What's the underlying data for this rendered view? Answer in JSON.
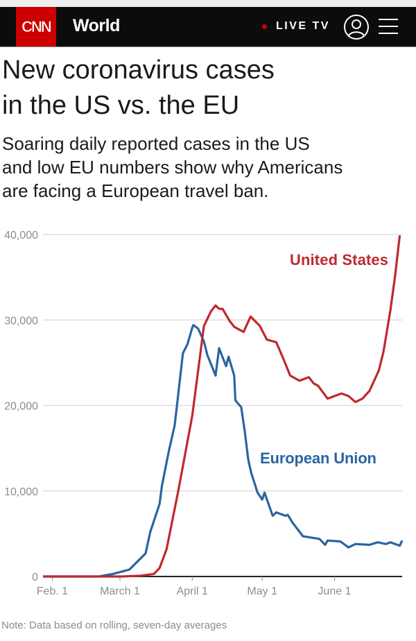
{
  "nav": {
    "logo": "CNN",
    "section": "World",
    "live_label": "LIVE TV",
    "icons": [
      "live-dot-icon",
      "user-icon",
      "menu-icon"
    ]
  },
  "article": {
    "title_lines": [
      "New coronavirus cases",
      "in the US vs. the EU"
    ],
    "dek_lines": [
      "Soaring daily reported cases in the US",
      "and low EU numbers show why Americans",
      "are facing a European travel ban."
    ],
    "note": "Note: Data based on rolling, seven-day averages"
  },
  "colors": {
    "us": "#c0282d",
    "eu": "#2a64a0",
    "brand": "#cc0000"
  },
  "chart_data": {
    "type": "line",
    "title": "New coronavirus cases in the US vs. the EU",
    "xlabel": "",
    "ylabel": "",
    "x_unit": "days since Feb. 1, 2020",
    "xlim": [
      -4,
      150
    ],
    "ylim": [
      0,
      40000
    ],
    "grid": true,
    "y_ticks": [
      {
        "value": 0,
        "label": "0"
      },
      {
        "value": 10000,
        "label": "10,000"
      },
      {
        "value": 20000,
        "label": "20,000"
      },
      {
        "value": 30000,
        "label": "30,000"
      },
      {
        "value": 40000,
        "label": "40,000"
      }
    ],
    "x_ticks": [
      {
        "value": 0,
        "label": "Feb. 1"
      },
      {
        "value": 29,
        "label": "March 1"
      },
      {
        "value": 60,
        "label": "April 1"
      },
      {
        "value": 90,
        "label": "May 1"
      },
      {
        "value": 121,
        "label": "June 1"
      }
    ],
    "series": [
      {
        "name": "United States",
        "color": "#c0282d",
        "x": [
          -4,
          30,
          38,
          43.6,
          46,
          49,
          54,
          60,
          65,
          68,
          70,
          71.5,
          73,
          76,
          78,
          80,
          82,
          85,
          89,
          92,
          96,
          99,
          102,
          106,
          110,
          112,
          114,
          118,
          121,
          124,
          127,
          130,
          133,
          136,
          140,
          142,
          145,
          147,
          149
        ],
        "y": [
          0,
          0,
          100,
          300,
          1000,
          3200,
          10000,
          18800,
          29300,
          31000,
          31700,
          31300,
          31300,
          29900,
          29200,
          28900,
          28600,
          30400,
          29300,
          27700,
          27400,
          25500,
          23500,
          22900,
          23300,
          22600,
          22300,
          20800,
          21100,
          21400,
          21100,
          20400,
          20800,
          21700,
          24100,
          26300,
          31200,
          35200,
          39900
        ]
      },
      {
        "name": "European Union",
        "color": "#2a64a0",
        "x": [
          -4,
          20,
          26,
          33,
          40,
          42,
          46,
          47,
          50,
          52.5,
          56,
          58,
          60,
          60.5,
          62.5,
          65,
          66.5,
          70,
          71.5,
          74.5,
          75.6,
          78,
          78.5,
          81,
          82.5,
          84,
          85.3,
          88,
          90,
          91,
          94.5,
          96,
          100,
          101,
          103,
          107.5,
          114.5,
          117,
          118,
          123.5,
          127,
          130,
          136,
          139.5,
          143,
          145,
          149,
          150
        ],
        "y": [
          0,
          0,
          300,
          800,
          2700,
          5200,
          8500,
          10600,
          14700,
          17700,
          26100,
          27200,
          29100,
          29400,
          29000,
          27500,
          25900,
          23500,
          26700,
          24600,
          25700,
          23500,
          20600,
          19800,
          17000,
          13700,
          12100,
          9800,
          9000,
          9800,
          7100,
          7500,
          7100,
          7200,
          6300,
          4700,
          4400,
          3700,
          4200,
          4100,
          3400,
          3800,
          3700,
          4000,
          3800,
          4000,
          3600,
          4200
        ]
      }
    ],
    "annotations": [
      "United States",
      "European Union"
    ]
  }
}
